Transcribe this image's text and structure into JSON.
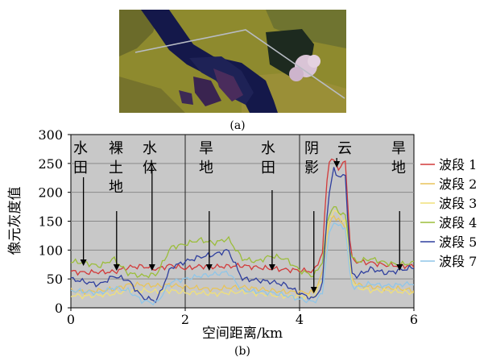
{
  "panel_a_label": "(a)",
  "panel_b_label": "(b)",
  "chart_data": {
    "type": "line",
    "xlabel": "空间距离/km",
    "ylabel": "像元灰度值",
    "xlim": [
      0,
      6
    ],
    "ylim": [
      0,
      300
    ],
    "x_ticks": [
      0,
      2,
      4,
      6
    ],
    "y_ticks": [
      0,
      50,
      100,
      150,
      200,
      250,
      300
    ],
    "grid": "horizontal",
    "legend_position": "right",
    "separators_x": [
      2,
      4
    ],
    "annotations": [
      {
        "lines": [
          "水",
          "田"
        ],
        "arrow_x": 0.22
      },
      {
        "lines": [
          "裸",
          "土",
          "地"
        ],
        "arrow_x": 0.8
      },
      {
        "lines": [
          "水",
          "体"
        ],
        "arrow_x": 1.42
      },
      {
        "lines": [
          "旱",
          "地"
        ],
        "arrow_x": 2.42
      },
      {
        "lines": [
          "水",
          "田"
        ],
        "arrow_x": 3.52
      },
      {
        "lines": [
          "阴",
          "影"
        ],
        "arrow_x": 4.25
      },
      {
        "lines": [
          "云"
        ],
        "arrow_x": 4.65
      },
      {
        "lines": [
          "旱",
          "地"
        ],
        "arrow_x": 5.75
      }
    ],
    "x": [
      0,
      0.25,
      0.5,
      0.75,
      1.0,
      1.25,
      1.5,
      1.75,
      2.0,
      2.25,
      2.5,
      2.75,
      3.0,
      3.25,
      3.5,
      3.75,
      4.0,
      4.25,
      4.4,
      4.5,
      4.6,
      4.7,
      4.8,
      4.9,
      5.0,
      5.25,
      5.5,
      5.75,
      6.0
    ],
    "series": [
      {
        "name": "波段 1",
        "color": "#d23a3a",
        "values": [
          63,
          61,
          62,
          62,
          70,
          72,
          67,
          74,
          68,
          72,
          71,
          72,
          73,
          70,
          68,
          66,
          65,
          63,
          95,
          255,
          255,
          240,
          255,
          85,
          80,
          78,
          74,
          73,
          72
        ]
      },
      {
        "name": "波段 2",
        "color": "#e8c45a",
        "values": [
          30,
          28,
          30,
          32,
          40,
          40,
          38,
          40,
          36,
          34,
          32,
          35,
          36,
          33,
          30,
          28,
          27,
          26,
          60,
          140,
          160,
          150,
          140,
          55,
          40,
          36,
          34,
          33,
          30
        ]
      },
      {
        "name": "波段 3",
        "color": "#f0e07a",
        "values": [
          22,
          20,
          22,
          24,
          30,
          30,
          28,
          30,
          26,
          26,
          24,
          26,
          28,
          25,
          22,
          20,
          20,
          19,
          50,
          150,
          170,
          160,
          150,
          50,
          35,
          30,
          30,
          28,
          26
        ]
      },
      {
        "name": "波段 4",
        "color": "#9bbd3a",
        "values": [
          80,
          78,
          72,
          85,
          60,
          55,
          58,
          105,
          110,
          118,
          112,
          120,
          85,
          80,
          90,
          85,
          65,
          55,
          80,
          160,
          175,
          165,
          160,
          88,
          80,
          85,
          78,
          75,
          78
        ]
      },
      {
        "name": "波段 5",
        "color": "#2f3f9e",
        "values": [
          50,
          45,
          40,
          55,
          48,
          18,
          12,
          70,
          80,
          88,
          92,
          100,
          50,
          48,
          45,
          40,
          25,
          15,
          40,
          190,
          240,
          225,
          230,
          60,
          55,
          68,
          60,
          65,
          70
        ]
      },
      {
        "name": "波段 7",
        "color": "#8fc6e8",
        "values": [
          30,
          28,
          25,
          35,
          30,
          12,
          8,
          45,
          50,
          55,
          58,
          62,
          30,
          28,
          26,
          22,
          15,
          10,
          25,
          120,
          150,
          140,
          140,
          40,
          35,
          42,
          38,
          40,
          42
        ]
      }
    ]
  }
}
